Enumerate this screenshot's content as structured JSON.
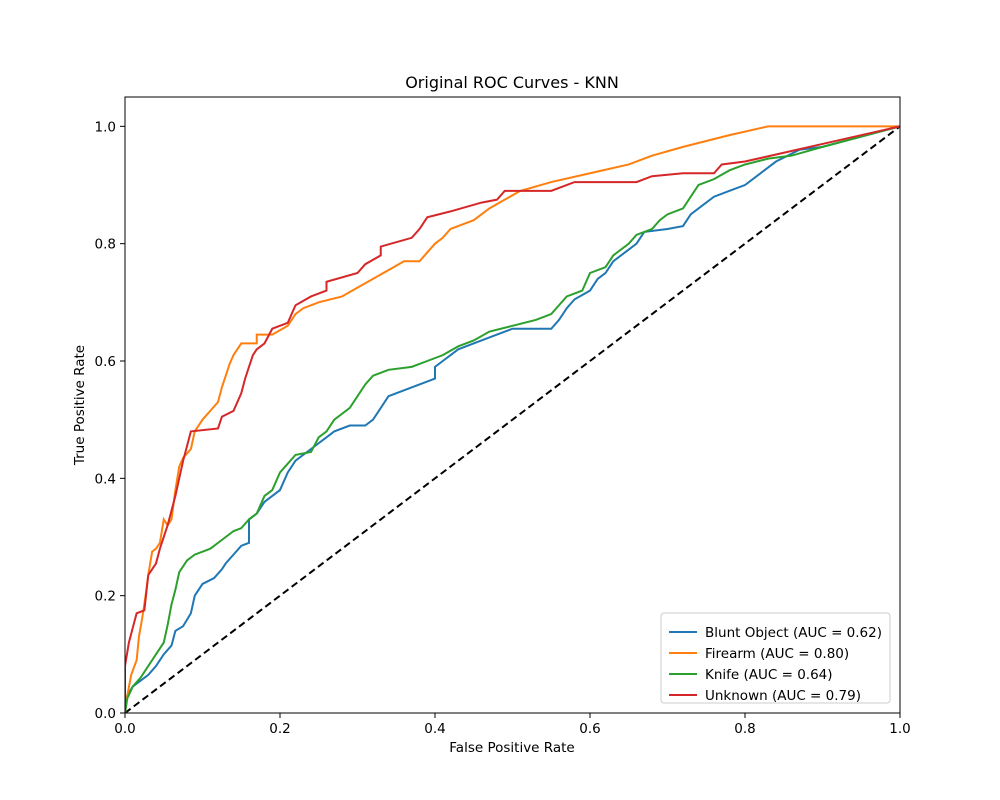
{
  "chart_data": {
    "type": "line",
    "title": "Original ROC Curves - KNN",
    "xlabel": "False Positive Rate",
    "ylabel": "True Positive Rate",
    "xlim": [
      0,
      1
    ],
    "ylim": [
      0,
      1.05
    ],
    "xticks": [
      "0.0",
      "0.2",
      "0.4",
      "0.6",
      "0.8",
      "1.0"
    ],
    "yticks": [
      "0.0",
      "0.2",
      "0.4",
      "0.6",
      "0.8",
      "1.0"
    ],
    "legend_position": "bottom-right",
    "grid": false,
    "reference_line": {
      "style": "dashed",
      "color": "#000000",
      "points": [
        [
          0,
          0
        ],
        [
          1,
          1
        ]
      ]
    },
    "series": [
      {
        "name": "Blunt Object (AUC = 0.62)",
        "color": "#1f77b4",
        "points": [
          [
            0,
            0
          ],
          [
            0.003,
            0.03
          ],
          [
            0.01,
            0.045
          ],
          [
            0.02,
            0.055
          ],
          [
            0.03,
            0.065
          ],
          [
            0.04,
            0.08
          ],
          [
            0.05,
            0.1
          ],
          [
            0.06,
            0.115
          ],
          [
            0.065,
            0.14
          ],
          [
            0.075,
            0.148
          ],
          [
            0.085,
            0.17
          ],
          [
            0.09,
            0.2
          ],
          [
            0.1,
            0.22
          ],
          [
            0.115,
            0.23
          ],
          [
            0.125,
            0.245
          ],
          [
            0.13,
            0.255
          ],
          [
            0.14,
            0.27
          ],
          [
            0.15,
            0.285
          ],
          [
            0.16,
            0.29
          ],
          [
            0.16,
            0.33
          ],
          [
            0.17,
            0.34
          ],
          [
            0.18,
            0.36
          ],
          [
            0.2,
            0.38
          ],
          [
            0.21,
            0.41
          ],
          [
            0.22,
            0.43
          ],
          [
            0.24,
            0.45
          ],
          [
            0.26,
            0.47
          ],
          [
            0.27,
            0.48
          ],
          [
            0.29,
            0.49
          ],
          [
            0.31,
            0.49
          ],
          [
            0.32,
            0.5
          ],
          [
            0.33,
            0.52
          ],
          [
            0.34,
            0.54
          ],
          [
            0.36,
            0.55
          ],
          [
            0.38,
            0.56
          ],
          [
            0.4,
            0.57
          ],
          [
            0.4,
            0.59
          ],
          [
            0.41,
            0.6
          ],
          [
            0.43,
            0.62
          ],
          [
            0.46,
            0.635
          ],
          [
            0.48,
            0.645
          ],
          [
            0.5,
            0.655
          ],
          [
            0.55,
            0.655
          ],
          [
            0.56,
            0.67
          ],
          [
            0.57,
            0.69
          ],
          [
            0.58,
            0.705
          ],
          [
            0.6,
            0.72
          ],
          [
            0.61,
            0.74
          ],
          [
            0.62,
            0.75
          ],
          [
            0.63,
            0.77
          ],
          [
            0.65,
            0.79
          ],
          [
            0.66,
            0.8
          ],
          [
            0.67,
            0.82
          ],
          [
            0.7,
            0.825
          ],
          [
            0.72,
            0.83
          ],
          [
            0.73,
            0.85
          ],
          [
            0.75,
            0.87
          ],
          [
            0.76,
            0.88
          ],
          [
            0.78,
            0.89
          ],
          [
            0.8,
            0.9
          ],
          [
            0.82,
            0.92
          ],
          [
            0.84,
            0.94
          ],
          [
            0.87,
            0.96
          ],
          [
            0.9,
            0.965
          ],
          [
            1,
            1
          ]
        ]
      },
      {
        "name": "Firearm (AUC = 0.80)",
        "color": "#ff7f0e",
        "points": [
          [
            0,
            0
          ],
          [
            0.003,
            0.03
          ],
          [
            0.008,
            0.065
          ],
          [
            0.015,
            0.09
          ],
          [
            0.018,
            0.13
          ],
          [
            0.022,
            0.16
          ],
          [
            0.026,
            0.195
          ],
          [
            0.03,
            0.235
          ],
          [
            0.035,
            0.275
          ],
          [
            0.04,
            0.28
          ],
          [
            0.045,
            0.29
          ],
          [
            0.05,
            0.33
          ],
          [
            0.055,
            0.32
          ],
          [
            0.06,
            0.33
          ],
          [
            0.065,
            0.38
          ],
          [
            0.07,
            0.42
          ],
          [
            0.075,
            0.435
          ],
          [
            0.085,
            0.45
          ],
          [
            0.09,
            0.48
          ],
          [
            0.1,
            0.5
          ],
          [
            0.11,
            0.515
          ],
          [
            0.12,
            0.53
          ],
          [
            0.125,
            0.555
          ],
          [
            0.13,
            0.575
          ],
          [
            0.135,
            0.595
          ],
          [
            0.14,
            0.61
          ],
          [
            0.15,
            0.63
          ],
          [
            0.17,
            0.63
          ],
          [
            0.17,
            0.645
          ],
          [
            0.19,
            0.645
          ],
          [
            0.21,
            0.66
          ],
          [
            0.22,
            0.68
          ],
          [
            0.23,
            0.69
          ],
          [
            0.25,
            0.7
          ],
          [
            0.28,
            0.71
          ],
          [
            0.3,
            0.725
          ],
          [
            0.32,
            0.74
          ],
          [
            0.34,
            0.755
          ],
          [
            0.36,
            0.77
          ],
          [
            0.38,
            0.77
          ],
          [
            0.38,
            0.77
          ],
          [
            0.39,
            0.785
          ],
          [
            0.4,
            0.8
          ],
          [
            0.41,
            0.81
          ],
          [
            0.42,
            0.825
          ],
          [
            0.45,
            0.84
          ],
          [
            0.47,
            0.86
          ],
          [
            0.49,
            0.875
          ],
          [
            0.51,
            0.89
          ],
          [
            0.55,
            0.905
          ],
          [
            0.6,
            0.92
          ],
          [
            0.65,
            0.935
          ],
          [
            0.68,
            0.95
          ],
          [
            0.72,
            0.965
          ],
          [
            0.78,
            0.985
          ],
          [
            0.83,
            1.0
          ],
          [
            1,
            1
          ]
        ]
      },
      {
        "name": "Knife (AUC = 0.64)",
        "color": "#2ca02c",
        "points": [
          [
            0,
            0
          ],
          [
            0.003,
            0.025
          ],
          [
            0.01,
            0.045
          ],
          [
            0.02,
            0.06
          ],
          [
            0.03,
            0.08
          ],
          [
            0.04,
            0.1
          ],
          [
            0.05,
            0.12
          ],
          [
            0.055,
            0.15
          ],
          [
            0.06,
            0.185
          ],
          [
            0.065,
            0.21
          ],
          [
            0.07,
            0.24
          ],
          [
            0.075,
            0.25
          ],
          [
            0.08,
            0.26
          ],
          [
            0.09,
            0.27
          ],
          [
            0.1,
            0.275
          ],
          [
            0.11,
            0.28
          ],
          [
            0.12,
            0.29
          ],
          [
            0.13,
            0.3
          ],
          [
            0.14,
            0.31
          ],
          [
            0.15,
            0.315
          ],
          [
            0.16,
            0.33
          ],
          [
            0.17,
            0.34
          ],
          [
            0.18,
            0.37
          ],
          [
            0.19,
            0.38
          ],
          [
            0.2,
            0.41
          ],
          [
            0.21,
            0.425
          ],
          [
            0.22,
            0.44
          ],
          [
            0.24,
            0.445
          ],
          [
            0.25,
            0.47
          ],
          [
            0.26,
            0.48
          ],
          [
            0.27,
            0.5
          ],
          [
            0.29,
            0.52
          ],
          [
            0.3,
            0.54
          ],
          [
            0.31,
            0.56
          ],
          [
            0.32,
            0.575
          ],
          [
            0.34,
            0.585
          ],
          [
            0.37,
            0.59
          ],
          [
            0.39,
            0.6
          ],
          [
            0.41,
            0.61
          ],
          [
            0.43,
            0.625
          ],
          [
            0.45,
            0.635
          ],
          [
            0.47,
            0.65
          ],
          [
            0.5,
            0.66
          ],
          [
            0.53,
            0.67
          ],
          [
            0.55,
            0.68
          ],
          [
            0.56,
            0.695
          ],
          [
            0.57,
            0.71
          ],
          [
            0.59,
            0.72
          ],
          [
            0.6,
            0.75
          ],
          [
            0.62,
            0.76
          ],
          [
            0.63,
            0.78
          ],
          [
            0.65,
            0.8
          ],
          [
            0.66,
            0.815
          ],
          [
            0.68,
            0.825
          ],
          [
            0.69,
            0.84
          ],
          [
            0.7,
            0.85
          ],
          [
            0.72,
            0.86
          ],
          [
            0.73,
            0.88
          ],
          [
            0.74,
            0.9
          ],
          [
            0.76,
            0.91
          ],
          [
            0.78,
            0.925
          ],
          [
            0.8,
            0.935
          ],
          [
            0.83,
            0.945
          ],
          [
            0.86,
            0.95
          ],
          [
            0.9,
            0.965
          ],
          [
            1,
            1
          ]
        ]
      },
      {
        "name": "Unknown (AUC = 0.79)",
        "color": "#d62728",
        "points": [
          [
            0,
            0
          ],
          [
            0,
            0.08
          ],
          [
            0.005,
            0.12
          ],
          [
            0.01,
            0.145
          ],
          [
            0.015,
            0.17
          ],
          [
            0.025,
            0.175
          ],
          [
            0.03,
            0.235
          ],
          [
            0.04,
            0.255
          ],
          [
            0.045,
            0.28
          ],
          [
            0.05,
            0.3
          ],
          [
            0.055,
            0.32
          ],
          [
            0.06,
            0.345
          ],
          [
            0.065,
            0.37
          ],
          [
            0.07,
            0.4
          ],
          [
            0.075,
            0.43
          ],
          [
            0.08,
            0.455
          ],
          [
            0.085,
            0.48
          ],
          [
            0.12,
            0.485
          ],
          [
            0.125,
            0.505
          ],
          [
            0.14,
            0.515
          ],
          [
            0.15,
            0.545
          ],
          [
            0.155,
            0.57
          ],
          [
            0.16,
            0.59
          ],
          [
            0.165,
            0.61
          ],
          [
            0.17,
            0.62
          ],
          [
            0.18,
            0.63
          ],
          [
            0.19,
            0.655
          ],
          [
            0.21,
            0.665
          ],
          [
            0.215,
            0.68
          ],
          [
            0.22,
            0.695
          ],
          [
            0.24,
            0.71
          ],
          [
            0.26,
            0.72
          ],
          [
            0.26,
            0.735
          ],
          [
            0.3,
            0.75
          ],
          [
            0.31,
            0.765
          ],
          [
            0.33,
            0.78
          ],
          [
            0.33,
            0.795
          ],
          [
            0.37,
            0.81
          ],
          [
            0.38,
            0.825
          ],
          [
            0.39,
            0.845
          ],
          [
            0.42,
            0.855
          ],
          [
            0.46,
            0.87
          ],
          [
            0.48,
            0.875
          ],
          [
            0.49,
            0.89
          ],
          [
            0.55,
            0.89
          ],
          [
            0.58,
            0.905
          ],
          [
            0.66,
            0.905
          ],
          [
            0.68,
            0.915
          ],
          [
            0.72,
            0.92
          ],
          [
            0.76,
            0.92
          ],
          [
            0.77,
            0.935
          ],
          [
            0.8,
            0.94
          ],
          [
            0.85,
            0.955
          ],
          [
            0.9,
            0.97
          ],
          [
            1,
            1
          ]
        ]
      }
    ]
  }
}
